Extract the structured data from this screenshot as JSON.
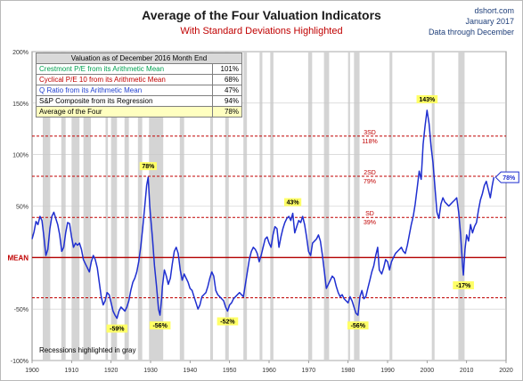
{
  "header": {
    "title": "Average of the Four Valuation Indicators",
    "subtitle": "With Standard Deviations Highlighted",
    "source_line1": "dshort.com",
    "source_line2": "January 2017",
    "source_line3": "Data through December"
  },
  "summary_table": {
    "header": "Valuation as of December 2016  Month End",
    "rows": [
      {
        "label": "Crestmont P/E from its Arithmetic Mean",
        "value": "101%",
        "color": "#00a050"
      },
      {
        "label": "Cyclical P/E 10 from its Arithmetic Mean",
        "value": "68%",
        "color": "#c00000"
      },
      {
        "label": "Q Ratio from its Arithmetic Mean",
        "value": "47%",
        "color": "#1f3fd0"
      },
      {
        "label": "S&P Composite from its Regression",
        "value": "94%",
        "color": "#000000"
      },
      {
        "label": "Average of the Four",
        "value": "78%",
        "color": "#000000"
      }
    ]
  },
  "recession_note": "Recessions highlighted in gray",
  "chart_data": {
    "type": "line",
    "title": "Average of the Four Valuation Indicators",
    "subtitle": "With Standard Deviations Highlighted",
    "xlim": [
      1900,
      2020
    ],
    "ylim": [
      -100,
      200
    ],
    "x_ticks": [
      "1900",
      "1910",
      "1920",
      "1930",
      "1940",
      "1950",
      "1960",
      "1970",
      "1980",
      "1990",
      "2000",
      "2010",
      "2020"
    ],
    "y_ticks": [
      {
        "value": 200,
        "label": "200%"
      },
      {
        "value": 150,
        "label": "150%"
      },
      {
        "value": 100,
        "label": "100%"
      },
      {
        "value": 50,
        "label": "50%"
      },
      {
        "value": 0,
        "label": "MEAN"
      },
      {
        "value": -50,
        "label": "-50%"
      },
      {
        "value": -100,
        "label": "-100%"
      }
    ],
    "reference_lines": [
      {
        "value": 118,
        "label_top": "3SD",
        "label_bottom": "118%",
        "style": "dashed"
      },
      {
        "value": 79,
        "label_top": "2SD",
        "label_bottom": "79%",
        "style": "dashed"
      },
      {
        "value": 39,
        "label_top": "SD",
        "label_bottom": "39%",
        "style": "dashed"
      },
      {
        "value": 0,
        "label_top": "",
        "label_bottom": "",
        "style": "solid"
      },
      {
        "value": -39,
        "label_top": "",
        "label_bottom": "",
        "style": "dashed"
      }
    ],
    "recessions": [
      [
        1902.7,
        1904.6
      ],
      [
        1907.4,
        1908.5
      ],
      [
        1910.0,
        1912.0
      ],
      [
        1913.0,
        1914.9
      ],
      [
        1918.6,
        1919.2
      ],
      [
        1920.0,
        1921.5
      ],
      [
        1923.4,
        1924.5
      ],
      [
        1926.8,
        1927.9
      ],
      [
        1929.6,
        1933.2
      ],
      [
        1937.4,
        1938.5
      ],
      [
        1945.1,
        1945.8
      ],
      [
        1948.9,
        1949.8
      ],
      [
        1953.5,
        1954.4
      ],
      [
        1957.6,
        1958.3
      ],
      [
        1960.3,
        1961.1
      ],
      [
        1969.9,
        1970.9
      ],
      [
        1973.9,
        1975.2
      ],
      [
        1980.0,
        1980.5
      ],
      [
        1981.5,
        1982.9
      ],
      [
        1990.5,
        1991.2
      ],
      [
        2001.2,
        2001.9
      ],
      [
        2007.9,
        2009.5
      ]
    ],
    "series": [
      {
        "name": "Average of the Four",
        "color": "#1f2fd0",
        "points": [
          [
            1900.0,
            18
          ],
          [
            1900.5,
            25
          ],
          [
            1901.0,
            35
          ],
          [
            1901.5,
            32
          ],
          [
            1902.0,
            40
          ],
          [
            1902.5,
            36
          ],
          [
            1903.0,
            20
          ],
          [
            1903.5,
            2
          ],
          [
            1904.0,
            8
          ],
          [
            1904.5,
            28
          ],
          [
            1905.0,
            40
          ],
          [
            1905.5,
            44
          ],
          [
            1906.0,
            38
          ],
          [
            1906.5,
            32
          ],
          [
            1907.0,
            22
          ],
          [
            1907.5,
            6
          ],
          [
            1908.0,
            10
          ],
          [
            1908.5,
            24
          ],
          [
            1909.0,
            34
          ],
          [
            1909.5,
            33
          ],
          [
            1910.0,
            20
          ],
          [
            1910.5,
            10
          ],
          [
            1911.0,
            14
          ],
          [
            1911.5,
            12
          ],
          [
            1912.0,
            14
          ],
          [
            1912.5,
            8
          ],
          [
            1913.0,
            -2
          ],
          [
            1913.5,
            -6
          ],
          [
            1914.0,
            -10
          ],
          [
            1914.5,
            -14
          ],
          [
            1915.0,
            -4
          ],
          [
            1915.5,
            2
          ],
          [
            1916.0,
            -2
          ],
          [
            1916.5,
            -10
          ],
          [
            1917.0,
            -24
          ],
          [
            1917.5,
            -38
          ],
          [
            1918.0,
            -46
          ],
          [
            1918.5,
            -42
          ],
          [
            1919.0,
            -34
          ],
          [
            1919.5,
            -36
          ],
          [
            1920.0,
            -44
          ],
          [
            1920.5,
            -52
          ],
          [
            1921.0,
            -56
          ],
          [
            1921.5,
            -59
          ],
          [
            1922.0,
            -52
          ],
          [
            1922.5,
            -48
          ],
          [
            1923.0,
            -50
          ],
          [
            1923.5,
            -52
          ],
          [
            1924.0,
            -48
          ],
          [
            1924.5,
            -42
          ],
          [
            1925.0,
            -32
          ],
          [
            1925.5,
            -24
          ],
          [
            1926.0,
            -20
          ],
          [
            1926.5,
            -14
          ],
          [
            1927.0,
            -4
          ],
          [
            1927.5,
            10
          ],
          [
            1928.0,
            28
          ],
          [
            1928.5,
            48
          ],
          [
            1929.0,
            70
          ],
          [
            1929.4,
            78
          ],
          [
            1929.8,
            50
          ],
          [
            1930.0,
            40
          ],
          [
            1930.5,
            18
          ],
          [
            1931.0,
            -8
          ],
          [
            1931.5,
            -28
          ],
          [
            1932.0,
            -50
          ],
          [
            1932.4,
            -56
          ],
          [
            1932.8,
            -40
          ],
          [
            1933.0,
            -28
          ],
          [
            1933.5,
            -12
          ],
          [
            1934.0,
            -18
          ],
          [
            1934.5,
            -26
          ],
          [
            1935.0,
            -20
          ],
          [
            1935.5,
            -6
          ],
          [
            1936.0,
            6
          ],
          [
            1936.5,
            10
          ],
          [
            1937.0,
            4
          ],
          [
            1937.5,
            -12
          ],
          [
            1938.0,
            -22
          ],
          [
            1938.5,
            -16
          ],
          [
            1939.0,
            -20
          ],
          [
            1939.5,
            -24
          ],
          [
            1940.0,
            -30
          ],
          [
            1940.5,
            -32
          ],
          [
            1941.0,
            -38
          ],
          [
            1941.5,
            -44
          ],
          [
            1942.0,
            -50
          ],
          [
            1942.5,
            -46
          ],
          [
            1943.0,
            -38
          ],
          [
            1943.5,
            -36
          ],
          [
            1944.0,
            -34
          ],
          [
            1944.5,
            -28
          ],
          [
            1945.0,
            -20
          ],
          [
            1945.5,
            -14
          ],
          [
            1946.0,
            -18
          ],
          [
            1946.5,
            -32
          ],
          [
            1947.0,
            -36
          ],
          [
            1947.5,
            -38
          ],
          [
            1948.0,
            -40
          ],
          [
            1948.5,
            -42
          ],
          [
            1949.0,
            -48
          ],
          [
            1949.5,
            -52
          ],
          [
            1950.0,
            -46
          ],
          [
            1950.5,
            -44
          ],
          [
            1951.0,
            -40
          ],
          [
            1951.5,
            -38
          ],
          [
            1952.0,
            -36
          ],
          [
            1952.5,
            -34
          ],
          [
            1953.0,
            -36
          ],
          [
            1953.5,
            -38
          ],
          [
            1954.0,
            -26
          ],
          [
            1954.5,
            -14
          ],
          [
            1955.0,
            -2
          ],
          [
            1955.5,
            6
          ],
          [
            1956.0,
            10
          ],
          [
            1956.5,
            8
          ],
          [
            1957.0,
            4
          ],
          [
            1957.5,
            -4
          ],
          [
            1958.0,
            2
          ],
          [
            1958.5,
            10
          ],
          [
            1959.0,
            18
          ],
          [
            1959.5,
            20
          ],
          [
            1960.0,
            14
          ],
          [
            1960.5,
            10
          ],
          [
            1961.0,
            22
          ],
          [
            1961.5,
            30
          ],
          [
            1962.0,
            28
          ],
          [
            1962.5,
            10
          ],
          [
            1963.0,
            20
          ],
          [
            1963.5,
            28
          ],
          [
            1964.0,
            34
          ],
          [
            1964.5,
            38
          ],
          [
            1965.0,
            40
          ],
          [
            1965.5,
            36
          ],
          [
            1966.0,
            43
          ],
          [
            1966.5,
            24
          ],
          [
            1967.0,
            30
          ],
          [
            1967.5,
            36
          ],
          [
            1968.0,
            34
          ],
          [
            1968.5,
            40
          ],
          [
            1969.0,
            32
          ],
          [
            1969.5,
            20
          ],
          [
            1970.0,
            6
          ],
          [
            1970.5,
            2
          ],
          [
            1971.0,
            14
          ],
          [
            1971.5,
            16
          ],
          [
            1972.0,
            18
          ],
          [
            1972.5,
            22
          ],
          [
            1973.0,
            16
          ],
          [
            1973.5,
            2
          ],
          [
            1974.0,
            -14
          ],
          [
            1974.5,
            -30
          ],
          [
            1975.0,
            -26
          ],
          [
            1975.5,
            -22
          ],
          [
            1976.0,
            -18
          ],
          [
            1976.5,
            -20
          ],
          [
            1977.0,
            -28
          ],
          [
            1977.5,
            -34
          ],
          [
            1978.0,
            -38
          ],
          [
            1978.5,
            -36
          ],
          [
            1979.0,
            -40
          ],
          [
            1979.5,
            -42
          ],
          [
            1980.0,
            -44
          ],
          [
            1980.5,
            -38
          ],
          [
            1981.0,
            -42
          ],
          [
            1981.5,
            -48
          ],
          [
            1982.0,
            -54
          ],
          [
            1982.5,
            -56
          ],
          [
            1983.0,
            -38
          ],
          [
            1983.5,
            -32
          ],
          [
            1984.0,
            -40
          ],
          [
            1984.5,
            -38
          ],
          [
            1985.0,
            -30
          ],
          [
            1985.5,
            -22
          ],
          [
            1986.0,
            -14
          ],
          [
            1986.5,
            -8
          ],
          [
            1987.0,
            2
          ],
          [
            1987.5,
            10
          ],
          [
            1987.9,
            -12
          ],
          [
            1988.5,
            -16
          ],
          [
            1989.0,
            -10
          ],
          [
            1989.5,
            -2
          ],
          [
            1990.0,
            -4
          ],
          [
            1990.5,
            -12
          ],
          [
            1991.0,
            -4
          ],
          [
            1991.5,
            0
          ],
          [
            1992.0,
            4
          ],
          [
            1992.5,
            6
          ],
          [
            1993.0,
            8
          ],
          [
            1993.5,
            10
          ],
          [
            1994.0,
            6
          ],
          [
            1994.5,
            4
          ],
          [
            1995.0,
            12
          ],
          [
            1995.5,
            22
          ],
          [
            1996.0,
            32
          ],
          [
            1996.5,
            40
          ],
          [
            1997.0,
            52
          ],
          [
            1997.5,
            68
          ],
          [
            1998.0,
            84
          ],
          [
            1998.5,
            76
          ],
          [
            1999.0,
            110
          ],
          [
            1999.5,
            128
          ],
          [
            2000.0,
            143
          ],
          [
            2000.5,
            130
          ],
          [
            2001.0,
            108
          ],
          [
            2001.5,
            92
          ],
          [
            2002.0,
            68
          ],
          [
            2002.5,
            44
          ],
          [
            2003.0,
            38
          ],
          [
            2003.5,
            52
          ],
          [
            2004.0,
            58
          ],
          [
            2004.5,
            54
          ],
          [
            2005.0,
            52
          ],
          [
            2005.5,
            50
          ],
          [
            2006.0,
            52
          ],
          [
            2006.5,
            54
          ],
          [
            2007.0,
            56
          ],
          [
            2007.5,
            58
          ],
          [
            2008.0,
            44
          ],
          [
            2008.5,
            22
          ],
          [
            2009.0,
            -8
          ],
          [
            2009.2,
            -17
          ],
          [
            2009.6,
            8
          ],
          [
            2010.0,
            22
          ],
          [
            2010.5,
            16
          ],
          [
            2011.0,
            32
          ],
          [
            2011.5,
            24
          ],
          [
            2012.0,
            30
          ],
          [
            2012.5,
            34
          ],
          [
            2013.0,
            46
          ],
          [
            2013.5,
            56
          ],
          [
            2014.0,
            62
          ],
          [
            2014.5,
            70
          ],
          [
            2015.0,
            74
          ],
          [
            2015.5,
            66
          ],
          [
            2016.0,
            58
          ],
          [
            2016.5,
            70
          ],
          [
            2016.9,
            78
          ]
        ]
      }
    ],
    "annotations": [
      {
        "x": 1929.4,
        "y": 78,
        "text": "78%",
        "pos": "above"
      },
      {
        "x": 1921.5,
        "y": -59,
        "text": "-59%",
        "pos": "below"
      },
      {
        "x": 1932.4,
        "y": -56,
        "text": "-56%",
        "pos": "below"
      },
      {
        "x": 1949.5,
        "y": -52,
        "text": "-52%",
        "pos": "below"
      },
      {
        "x": 1966.0,
        "y": 43,
        "text": "43%",
        "pos": "above"
      },
      {
        "x": 1982.5,
        "y": -56,
        "text": "-56%",
        "pos": "below"
      },
      {
        "x": 2000.0,
        "y": 143,
        "text": "143%",
        "pos": "above"
      },
      {
        "x": 2009.2,
        "y": -17,
        "text": "-17%",
        "pos": "below"
      }
    ],
    "latest_label": {
      "x": 2016.9,
      "y": 78,
      "text": "78%"
    }
  }
}
